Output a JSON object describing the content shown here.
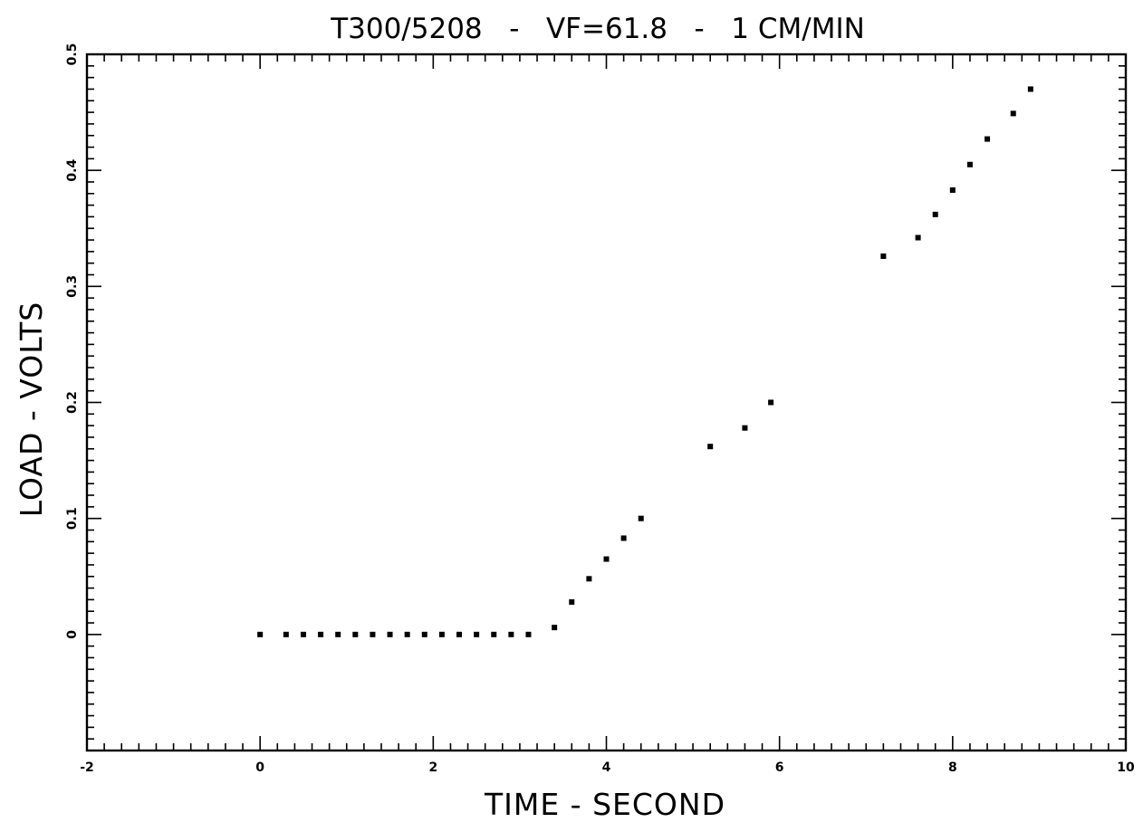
{
  "chart_data": {
    "type": "scatter",
    "title": "T300/5208   -   VF=61.8   -   1 CM/MIN",
    "xlabel": "TIME - SECOND",
    "ylabel": "LOAD - VOLTS",
    "xlim": [
      -2,
      10
    ],
    "ylim": [
      -0.1,
      0.5
    ],
    "x_ticks": [
      -2,
      0,
      2,
      4,
      6,
      8,
      10
    ],
    "x_tick_labels": [
      "-2",
      "0",
      "2",
      "4",
      "6",
      "8",
      "10"
    ],
    "y_ticks": [
      0,
      0.1,
      0.2,
      0.3,
      0.4,
      0.5
    ],
    "y_tick_labels": [
      "0",
      "0.1",
      "0.2",
      "0.3",
      "0.4",
      "0.5"
    ],
    "grid": false,
    "legend": "none",
    "colors": {
      "marker": "#000000",
      "frame": "#000000",
      "background": "#ffffff"
    },
    "series": [
      {
        "x": [
          0.0,
          0.3,
          0.5,
          0.7,
          0.9,
          1.1,
          1.3,
          1.5,
          1.7,
          1.9,
          2.1,
          2.3,
          2.5,
          2.7,
          2.9,
          3.1,
          3.4,
          3.6,
          3.8,
          4.0,
          4.2,
          4.4,
          5.2,
          5.6,
          5.9,
          7.2,
          7.6,
          7.8,
          8.0,
          8.2,
          8.4,
          8.7,
          8.9
        ],
        "y": [
          0.0,
          0.0,
          0.0,
          0.0,
          0.0,
          0.0,
          0.0,
          0.0,
          0.0,
          0.0,
          0.0,
          0.0,
          0.0,
          0.0,
          0.0,
          0.0,
          0.006,
          0.028,
          0.048,
          0.065,
          0.083,
          0.1,
          0.162,
          0.178,
          0.2,
          0.326,
          0.342,
          0.362,
          0.383,
          0.405,
          0.427,
          0.449,
          0.47
        ]
      }
    ]
  }
}
